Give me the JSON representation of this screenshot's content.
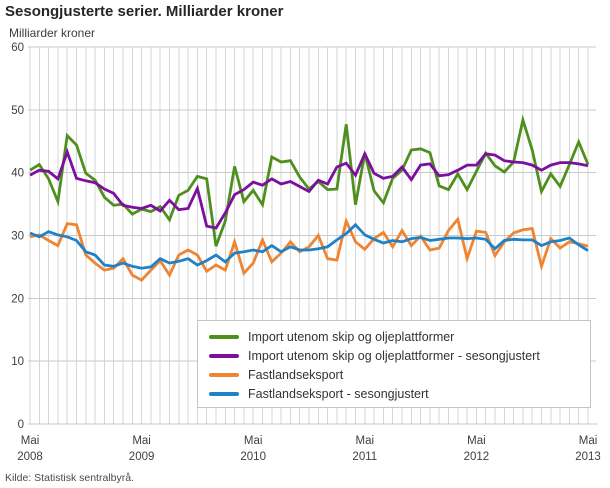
{
  "title": "Sesongjusterte serier. Milliarder kroner",
  "subtitle": "Milliarder kroner",
  "source": "Kilde: Statistisk sentralbyrå.",
  "colors": {
    "grid_horizontal": "#c9c9c9",
    "grid_vertical": "#d6d6d6",
    "tick_text": "#3f3f3f",
    "background": "#ffffff"
  },
  "chart_data": {
    "type": "line",
    "title": "Sesongjusterte serier. Milliarder kroner",
    "ylabel": "Milliarder kroner",
    "xlabel": "",
    "ylim": [
      0,
      60
    ],
    "y_ticks": [
      0,
      10,
      20,
      30,
      40,
      50,
      60
    ],
    "grid": "horizontal every 10, vertical every month",
    "legend_position": "bottom-right box",
    "x_unit": "month",
    "x_range": "Mai 2008 - Mai 2013",
    "x_ticks": [
      {
        "month": "Mai",
        "year": "2008",
        "index": 0
      },
      {
        "month": "Mai",
        "year": "2009",
        "index": 12
      },
      {
        "month": "Mai",
        "year": "2010",
        "index": 24
      },
      {
        "month": "Mai",
        "year": "2011",
        "index": 36
      },
      {
        "month": "Mai",
        "year": "2012",
        "index": 48
      },
      {
        "month": "Mai",
        "year": "2013",
        "index": 60
      }
    ],
    "series": [
      {
        "name": "Import utenom skip og oljeplattformer",
        "color": "#4e8f1e",
        "values": [
          40.4,
          41.3,
          39.0,
          35.4,
          45.9,
          44.4,
          39.9,
          38.8,
          36.1,
          34.8,
          35.0,
          33.4,
          34.2,
          33.8,
          34.6,
          32.5,
          36.4,
          37.2,
          39.4,
          39.0,
          28.3,
          32.3,
          41.0,
          35.4,
          37.2,
          34.9,
          42.5,
          41.7,
          41.9,
          39.3,
          37.4,
          38.6,
          37.3,
          37.4,
          47.7,
          34.9,
          43.1,
          37.1,
          35.2,
          39.1,
          40.4,
          43.6,
          43.8,
          43.2,
          37.9,
          37.3,
          39.8,
          37.3,
          40.2,
          43.1,
          41.1,
          40.1,
          41.7,
          48.4,
          43.6,
          37.0,
          39.8,
          37.8,
          41.3,
          44.9,
          41.3
        ]
      },
      {
        "name": "Import utenom skip og oljeplattformer - sesongjustert",
        "color": "#7b0f9e",
        "values": [
          39.6,
          40.4,
          40.2,
          39.0,
          43.3,
          39.1,
          38.7,
          38.4,
          37.4,
          36.7,
          34.8,
          34.5,
          34.3,
          34.8,
          33.9,
          35.6,
          34.1,
          34.3,
          37.5,
          31.5,
          31.2,
          33.6,
          36.5,
          37.3,
          38.5,
          38.0,
          39.0,
          38.2,
          38.6,
          37.8,
          37.0,
          38.8,
          38.2,
          40.9,
          41.5,
          39.6,
          43.0,
          39.9,
          39.1,
          39.4,
          40.9,
          38.9,
          41.2,
          41.4,
          39.5,
          39.7,
          40.4,
          41.2,
          41.2,
          43.0,
          42.8,
          41.9,
          41.7,
          41.6,
          41.2,
          40.4,
          41.2,
          41.6,
          41.6,
          41.4,
          41.1
        ]
      },
      {
        "name": "Fastlandseksport",
        "color": "#ef8432",
        "values": [
          29.8,
          30.1,
          29.2,
          28.4,
          31.9,
          31.7,
          26.9,
          25.6,
          24.5,
          24.8,
          26.3,
          23.7,
          22.9,
          24.5,
          26.0,
          23.7,
          26.9,
          27.7,
          26.9,
          24.3,
          25.3,
          24.5,
          29.0,
          24.0,
          25.6,
          29.3,
          25.8,
          27.2,
          29.0,
          27.4,
          28.2,
          30.0,
          26.3,
          26.1,
          32.3,
          29.0,
          27.8,
          29.5,
          30.5,
          28.2,
          30.8,
          28.4,
          29.9,
          27.7,
          28.0,
          30.8,
          32.6,
          26.3,
          30.7,
          30.5,
          26.8,
          29.0,
          30.4,
          30.9,
          31.1,
          25.1,
          29.5,
          28.0,
          29.0,
          28.7,
          28.3
        ]
      },
      {
        "name": "Fastlandseksport - sesongjustert",
        "color": "#1f82c6",
        "values": [
          30.4,
          29.8,
          30.6,
          30.1,
          29.8,
          29.2,
          27.4,
          26.9,
          25.3,
          25.1,
          25.6,
          25.1,
          24.8,
          25.0,
          26.3,
          25.6,
          25.9,
          26.3,
          25.3,
          26.0,
          26.9,
          25.8,
          27.2,
          27.4,
          27.7,
          27.4,
          28.4,
          27.4,
          28.2,
          27.7,
          27.7,
          27.9,
          28.2,
          29.3,
          30.3,
          31.7,
          30.1,
          29.4,
          28.8,
          29.2,
          29.0,
          29.5,
          29.7,
          29.2,
          29.4,
          29.6,
          29.6,
          29.5,
          29.6,
          29.4,
          27.9,
          29.2,
          29.4,
          29.3,
          29.3,
          28.4,
          29.0,
          29.2,
          29.6,
          28.5,
          27.6
        ]
      }
    ]
  }
}
